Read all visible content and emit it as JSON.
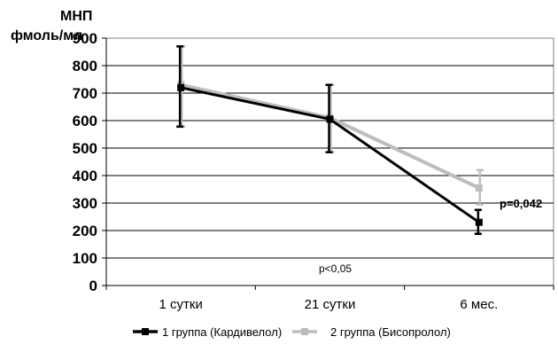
{
  "chart_data": {
    "type": "line",
    "ylabel_lines": [
      "МНП",
      "фмоль/мл"
    ],
    "xlabel": "",
    "ylim": [
      0,
      900
    ],
    "yticks": [
      0,
      100,
      200,
      300,
      400,
      500,
      600,
      700,
      800,
      900
    ],
    "grid": true,
    "categories": [
      "1 сутки",
      "21 сутки",
      "6 мес."
    ],
    "series": [
      {
        "name": "1 группа (Кардивелол)",
        "color": "#000000",
        "values": [
          720,
          605,
          230
        ],
        "err_high": [
          870,
          730,
          275
        ],
        "err_low": [
          578,
          485,
          188
        ]
      },
      {
        "name": "2 группа (Бисопролол)",
        "color": "#bdbdbd",
        "values": [
          730,
          610,
          355
        ],
        "err_high": [
          870,
          730,
          420
        ],
        "err_low": [
          578,
          485,
          295
        ]
      }
    ],
    "annotations": {
      "p_mid": "p<0,05",
      "p_right": "p=0,042"
    },
    "legend_position": "bottom"
  }
}
